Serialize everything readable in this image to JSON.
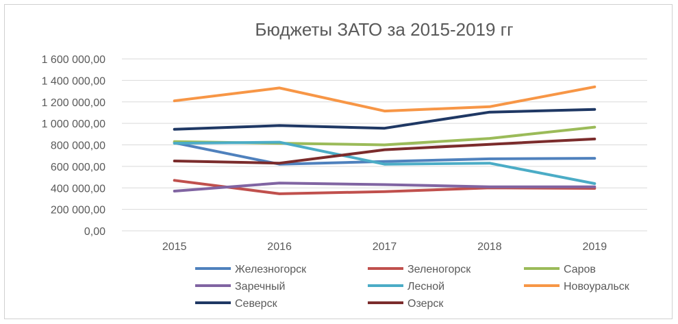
{
  "chart_data": {
    "type": "line",
    "title": "Бюджеты ЗАТО за 2015-2019 гг",
    "xlabel": "",
    "ylabel": "",
    "categories": [
      "2015",
      "2016",
      "2017",
      "2018",
      "2019"
    ],
    "ylim": [
      0,
      1600000
    ],
    "yticks": [
      0,
      200000,
      400000,
      600000,
      800000,
      1000000,
      1200000,
      1400000,
      1600000
    ],
    "ytick_labels": [
      "0,00",
      "200 000,00",
      "400 000,00",
      "600 000,00",
      "800 000,00",
      "1 000 000,00",
      "1 200 000,00",
      "1 400 000,00",
      "1 600 000,00"
    ],
    "grid": true,
    "legend_position": "bottom",
    "series": [
      {
        "name": "Железногорск",
        "color": "#4f81bd",
        "values": [
          820000,
          620000,
          645000,
          670000,
          675000
        ]
      },
      {
        "name": "Зеленогорск",
        "color": "#c0504d",
        "values": [
          470000,
          345000,
          365000,
          400000,
          395000
        ]
      },
      {
        "name": "Саров",
        "color": "#9bbb59",
        "values": [
          830000,
          815000,
          800000,
          860000,
          965000
        ]
      },
      {
        "name": "Заречный",
        "color": "#8064a2",
        "values": [
          370000,
          445000,
          430000,
          410000,
          410000
        ]
      },
      {
        "name": "Лесной",
        "color": "#4bacc6",
        "values": [
          815000,
          825000,
          620000,
          630000,
          440000
        ]
      },
      {
        "name": "Новоуральск",
        "color": "#f79646",
        "values": [
          1210000,
          1330000,
          1115000,
          1155000,
          1340000
        ]
      },
      {
        "name": "Северск",
        "color": "#1f3864",
        "values": [
          945000,
          980000,
          955000,
          1105000,
          1130000
        ]
      },
      {
        "name": "Озерск",
        "color": "#7b2c2c",
        "values": [
          650000,
          630000,
          755000,
          805000,
          855000
        ]
      }
    ]
  }
}
